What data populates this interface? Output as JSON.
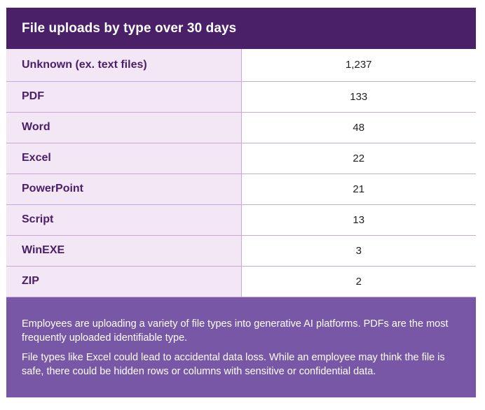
{
  "title": "File uploads by type over 30 days",
  "rows": [
    {
      "type": "Unknown (ex. text files)",
      "count": "1,237"
    },
    {
      "type": "PDF",
      "count": "133"
    },
    {
      "type": "Word",
      "count": "48"
    },
    {
      "type": "Excel",
      "count": "22"
    },
    {
      "type": "PowerPoint",
      "count": "21"
    },
    {
      "type": "Script",
      "count": "13"
    },
    {
      "type": "WinEXE",
      "count": "3"
    },
    {
      "type": "ZIP",
      "count": "2"
    }
  ],
  "footer": {
    "paragraph_1": "Employees are uploading a variety of file types into generative AI platforms. PDFs are the most frequently uploaded identifiable type.",
    "paragraph_2": "File types like Excel could lead to accidental data loss. While an employee may think the file is safe, there could be hidden rows or columns with sensitive or confidential data."
  },
  "colors": {
    "header_bg": "#4a2068",
    "label_bg": "#f3e7f6",
    "footer_bg": "#7857a6",
    "border": "#c9a9d9"
  }
}
